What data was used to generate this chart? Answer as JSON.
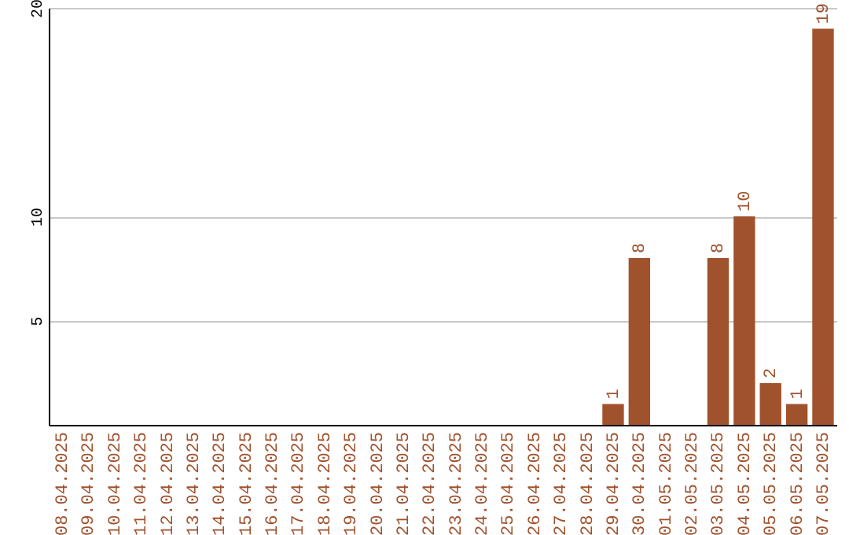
{
  "chart_data": {
    "type": "bar",
    "categories": [
      "08.04.2025",
      "09.04.2025",
      "10.04.2025",
      "11.04.2025",
      "12.04.2025",
      "13.04.2025",
      "14.04.2025",
      "15.04.2025",
      "16.04.2025",
      "17.04.2025",
      "18.04.2025",
      "19.04.2025",
      "20.04.2025",
      "21.04.2025",
      "22.04.2025",
      "23.04.2025",
      "24.04.2025",
      "25.04.2025",
      "26.04.2025",
      "27.04.2025",
      "28.04.2025",
      "29.04.2025",
      "30.04.2025",
      "01.05.2025",
      "02.05.2025",
      "03.05.2025",
      "04.05.2025",
      "05.05.2025",
      "06.05.2025",
      "07.05.2025"
    ],
    "values": [
      0,
      0,
      0,
      0,
      0,
      0,
      0,
      0,
      0,
      0,
      0,
      0,
      0,
      0,
      0,
      0,
      0,
      0,
      0,
      0,
      0,
      1,
      8,
      0,
      0,
      8,
      10,
      2,
      1,
      19
    ],
    "value_labels": [
      null,
      null,
      null,
      null,
      null,
      null,
      null,
      null,
      null,
      null,
      null,
      null,
      null,
      null,
      null,
      null,
      null,
      null,
      null,
      null,
      null,
      "1",
      "8",
      null,
      null,
      "8",
      "10",
      "2",
      "1",
      "19"
    ],
    "color": "#a0522d",
    "ylim": [
      0,
      20
    ],
    "yticks": [
      5,
      10,
      20
    ],
    "grid": true
  }
}
